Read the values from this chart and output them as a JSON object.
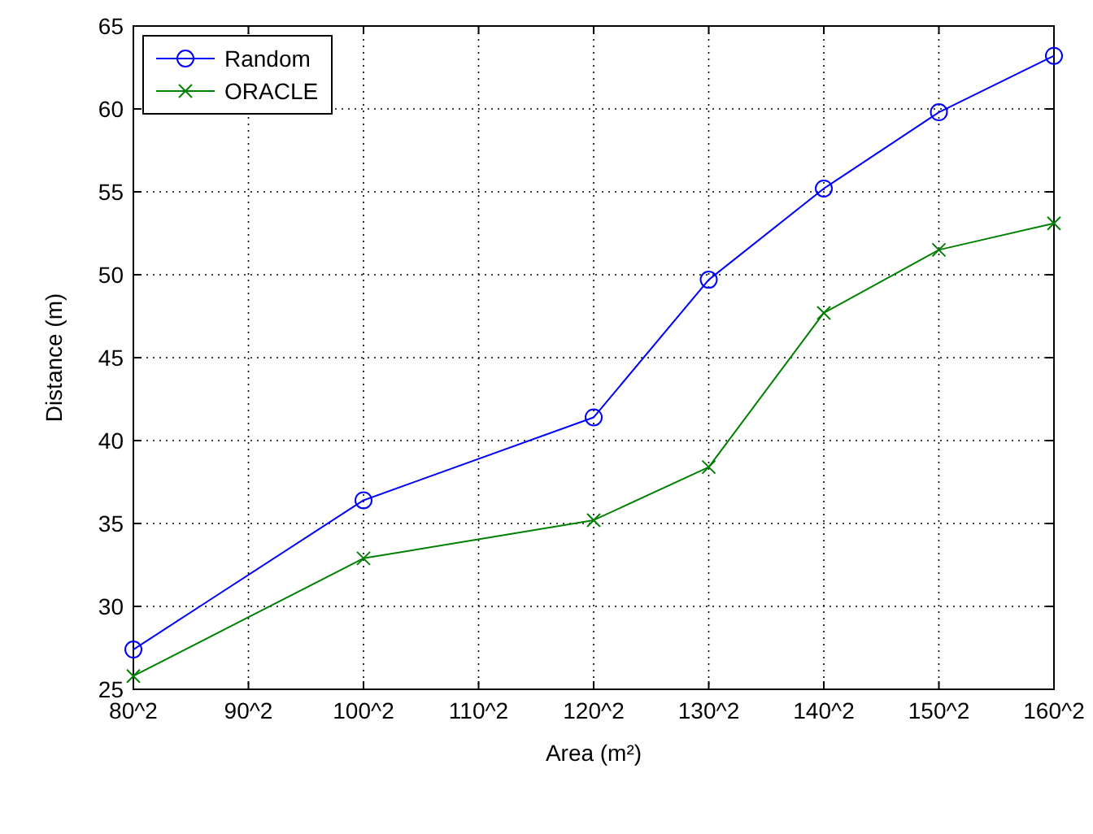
{
  "chart_data": {
    "type": "line",
    "xlabel": "Area (m²)",
    "ylabel": "Distance (m)",
    "categories": [
      "80^2",
      "90^2",
      "100^2",
      "110^2",
      "120^2",
      "130^2",
      "140^2",
      "150^2",
      "160^2"
    ],
    "series": [
      {
        "name": "Random",
        "color": "#0000ff",
        "marker": "circle",
        "values": [
          27.4,
          null,
          36.4,
          null,
          41.4,
          49.7,
          55.2,
          59.8,
          63.2
        ]
      },
      {
        "name": "ORACLE",
        "color": "#008000",
        "marker": "cross",
        "values": [
          25.8,
          null,
          32.9,
          null,
          35.2,
          38.4,
          47.7,
          51.5,
          53.1
        ]
      }
    ],
    "ylim": [
      25,
      65
    ],
    "yticks": [
      25,
      30,
      35,
      40,
      45,
      50,
      55,
      60,
      65
    ],
    "grid": true,
    "legend": "top left",
    "line_style": "solid"
  }
}
